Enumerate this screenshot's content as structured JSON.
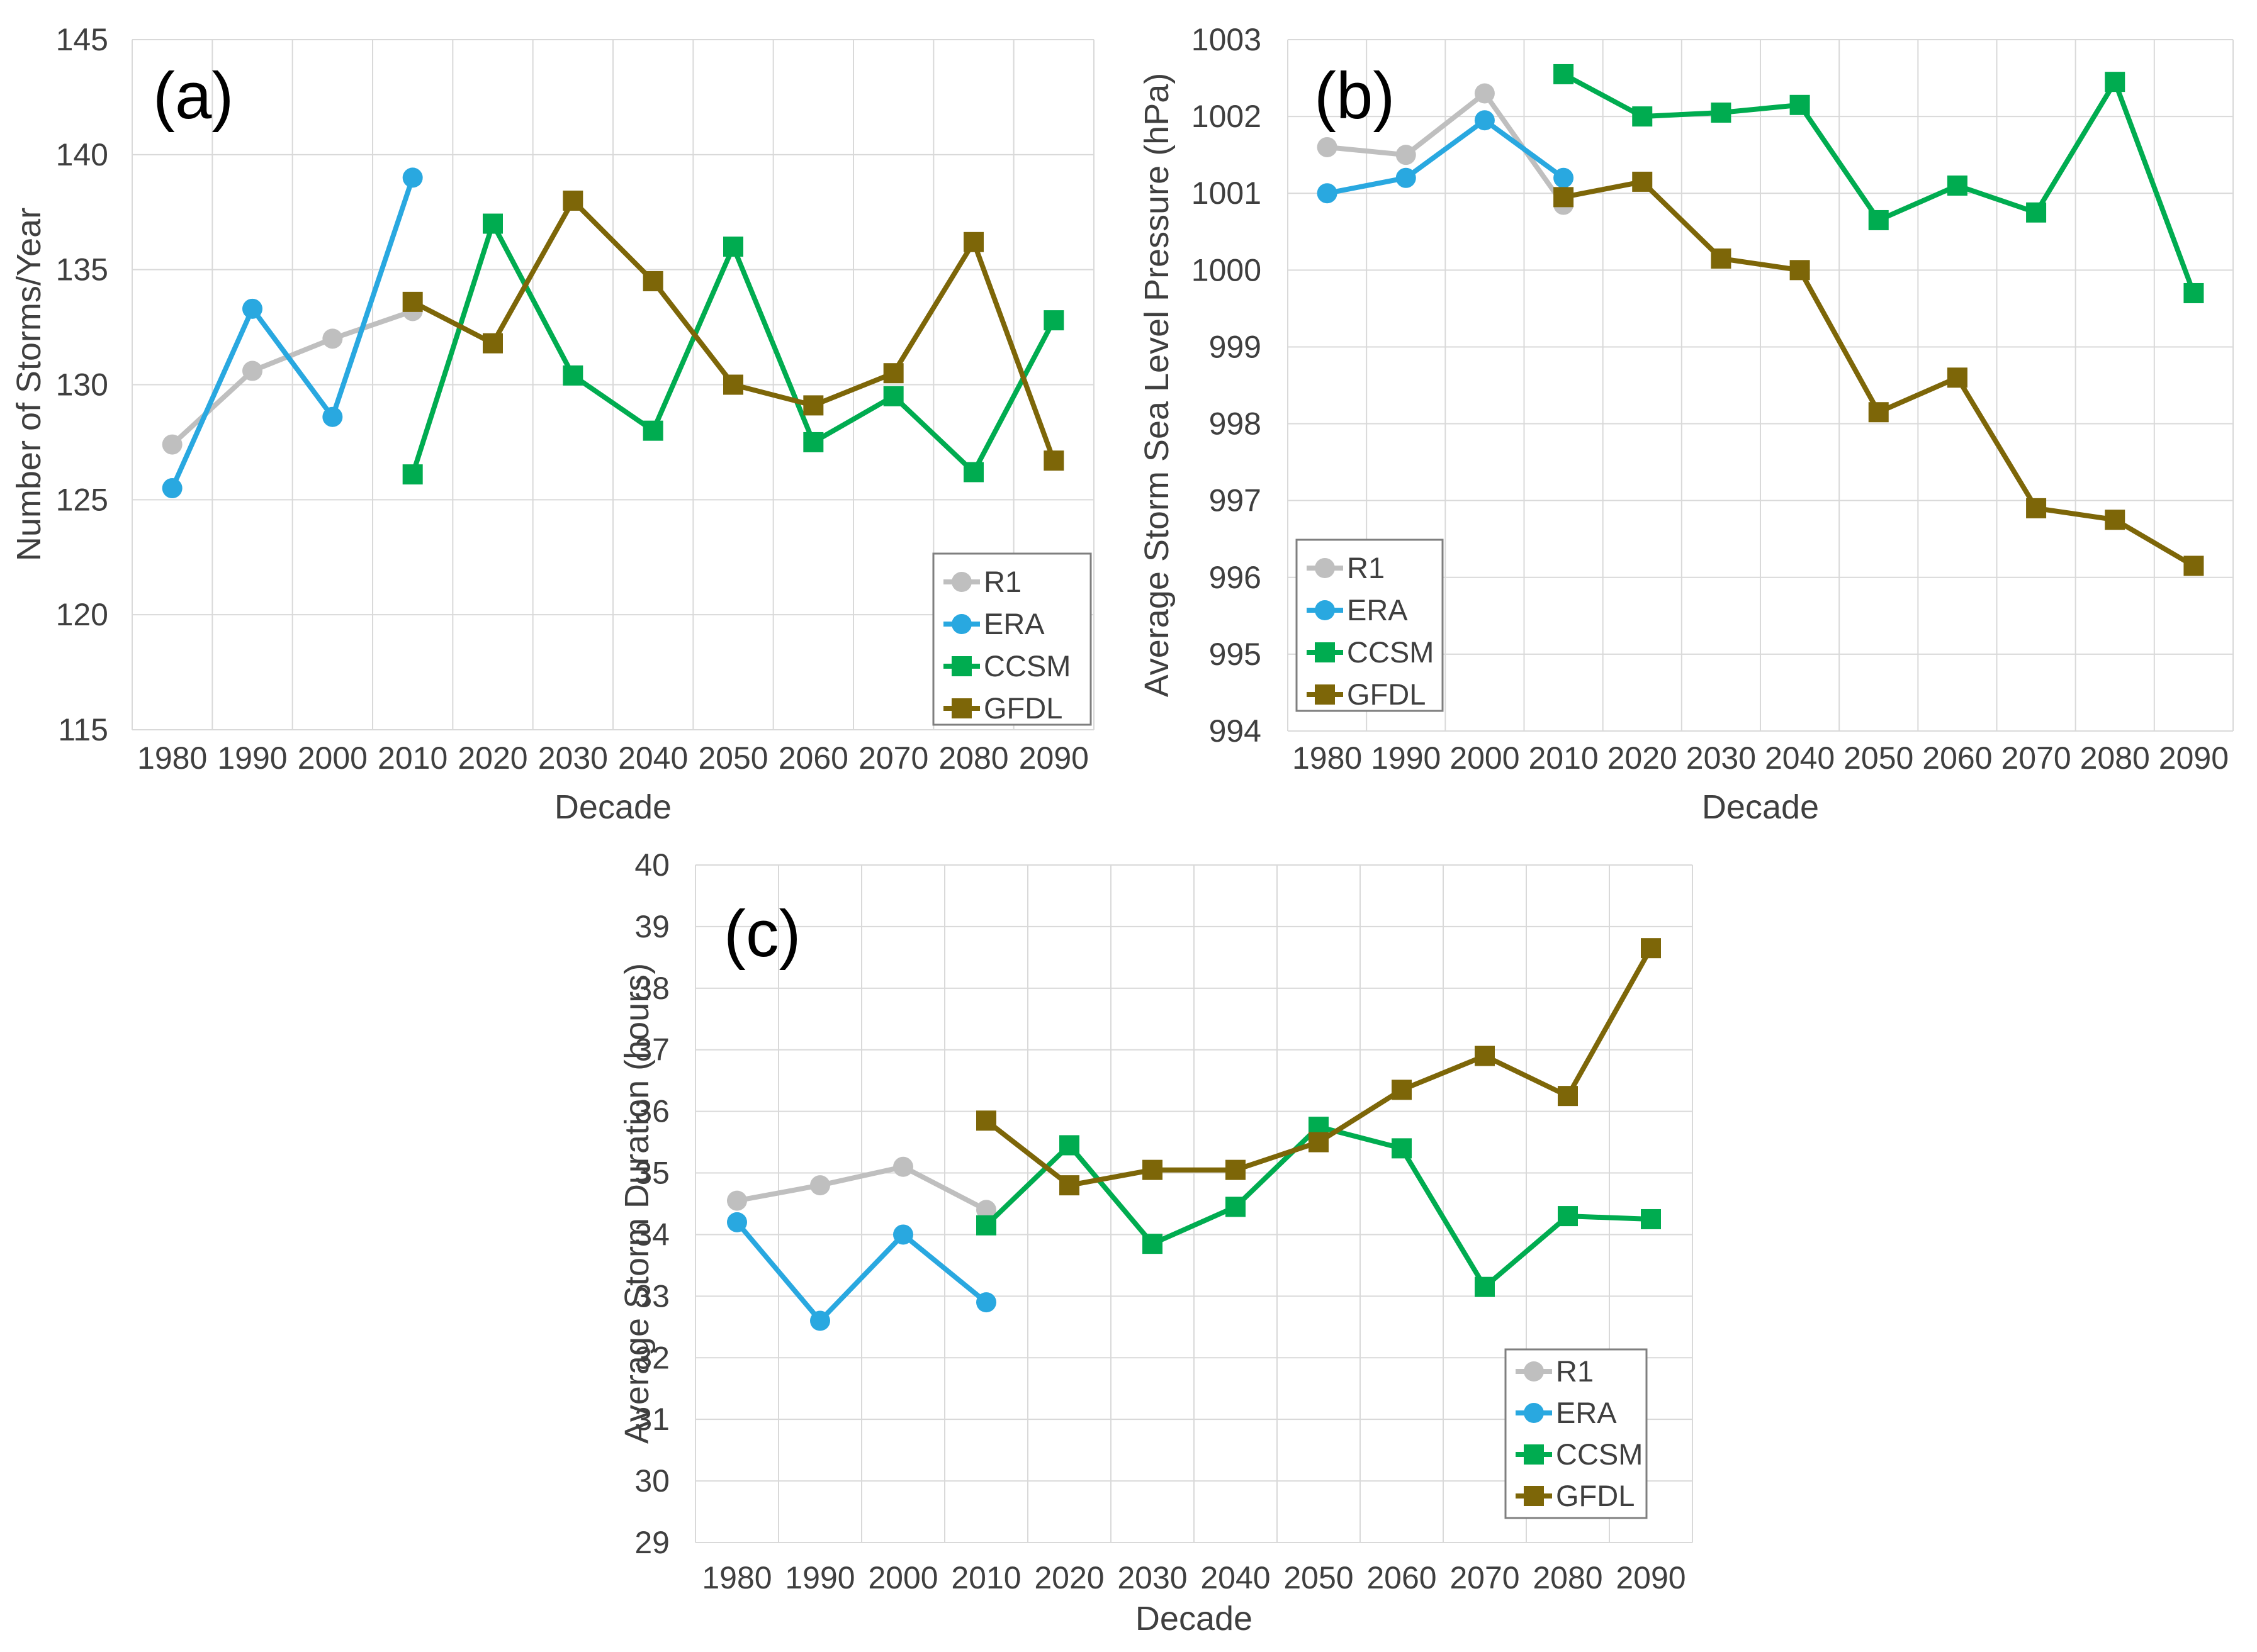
{
  "figure": {
    "background_color": "#FFFFFF",
    "gridline_color": "#D9D9D9",
    "tick_text_color": "#3F3F3F",
    "legend_border_color": "#7F7F7F",
    "legend_fill_color": "#FFFFFF"
  },
  "chart_data": [
    {
      "id": "a",
      "type": "line",
      "panel_label": "(a)",
      "xlabel": "Decade",
      "ylabel": "Number of Storms/Year",
      "ylim": [
        115,
        145
      ],
      "ytick_step": 5,
      "grid": true,
      "legend_position": "bottom-right-inside",
      "categories": [
        1980,
        1990,
        2000,
        2010,
        2020,
        2030,
        2040,
        2050,
        2060,
        2070,
        2080,
        2090
      ],
      "series": [
        {
          "name": "R1",
          "color": "#BFBFBF",
          "marker": "circle",
          "values": [
            127.4,
            130.6,
            132.0,
            133.2,
            null,
            null,
            null,
            null,
            null,
            null,
            null,
            null
          ]
        },
        {
          "name": "ERA",
          "color": "#29A8E0",
          "marker": "circle",
          "values": [
            125.5,
            133.3,
            128.6,
            139.0,
            null,
            null,
            null,
            null,
            null,
            null,
            null,
            null
          ]
        },
        {
          "name": "CCSM",
          "color": "#00AC50",
          "marker": "square",
          "values": [
            null,
            null,
            null,
            126.1,
            137.0,
            130.4,
            128.0,
            136.0,
            127.5,
            129.5,
            126.2,
            132.8
          ]
        },
        {
          "name": "GFDL",
          "color": "#7D6608",
          "marker": "square",
          "values": [
            null,
            null,
            null,
            133.6,
            131.8,
            138.0,
            134.5,
            130.0,
            129.1,
            130.5,
            136.2,
            126.7
          ]
        }
      ]
    },
    {
      "id": "b",
      "type": "line",
      "panel_label": "(b)",
      "xlabel": "Decade",
      "ylabel": "Average Storm Sea Level Pressure (hPa)",
      "ylim": [
        994,
        1003
      ],
      "ytick_step": 1,
      "grid": true,
      "legend_position": "left-inside",
      "categories": [
        1980,
        1990,
        2000,
        2010,
        2020,
        2030,
        2040,
        2050,
        2060,
        2070,
        2080,
        2090
      ],
      "series": [
        {
          "name": "R1",
          "color": "#BFBFBF",
          "marker": "circle",
          "values": [
            1001.6,
            1001.5,
            1002.3,
            1000.85,
            null,
            null,
            null,
            null,
            null,
            null,
            null,
            null
          ]
        },
        {
          "name": "ERA",
          "color": "#29A8E0",
          "marker": "circle",
          "values": [
            1001.0,
            1001.2,
            1001.95,
            1001.2,
            null,
            null,
            null,
            null,
            null,
            null,
            null,
            null
          ]
        },
        {
          "name": "CCSM",
          "color": "#00AC50",
          "marker": "square",
          "values": [
            null,
            null,
            null,
            1002.55,
            1002.0,
            1002.05,
            1002.15,
            1000.65,
            1001.1,
            1000.75,
            1002.45,
            999.7
          ]
        },
        {
          "name": "GFDL",
          "color": "#7D6608",
          "marker": "square",
          "values": [
            null,
            null,
            null,
            1000.95,
            1001.15,
            1000.15,
            1000.0,
            998.15,
            998.6,
            996.9,
            996.75,
            996.15
          ]
        }
      ]
    },
    {
      "id": "c",
      "type": "line",
      "panel_label": "(c)",
      "xlabel": "Decade",
      "ylabel": "Average Storm Duration (hours)",
      "ylim": [
        29,
        40
      ],
      "ytick_step": 1,
      "grid": true,
      "legend_position": "bottom-right-inside",
      "categories": [
        1980,
        1990,
        2000,
        2010,
        2020,
        2030,
        2040,
        2050,
        2060,
        2070,
        2080,
        2090
      ],
      "series": [
        {
          "name": "R1",
          "color": "#BFBFBF",
          "marker": "circle",
          "values": [
            34.55,
            34.8,
            35.1,
            34.4,
            null,
            null,
            null,
            null,
            null,
            null,
            null,
            null
          ]
        },
        {
          "name": "ERA",
          "color": "#29A8E0",
          "marker": "circle",
          "values": [
            34.2,
            32.6,
            34.0,
            32.9,
            null,
            null,
            null,
            null,
            null,
            null,
            null,
            null
          ]
        },
        {
          "name": "CCSM",
          "color": "#00AC50",
          "marker": "square",
          "values": [
            null,
            null,
            null,
            34.15,
            35.45,
            33.85,
            34.45,
            35.75,
            35.4,
            33.15,
            34.3,
            34.25
          ]
        },
        {
          "name": "GFDL",
          "color": "#7D6608",
          "marker": "square",
          "values": [
            null,
            null,
            null,
            35.85,
            34.8,
            35.05,
            35.05,
            35.5,
            36.35,
            36.9,
            36.25,
            38.65
          ]
        }
      ]
    }
  ]
}
